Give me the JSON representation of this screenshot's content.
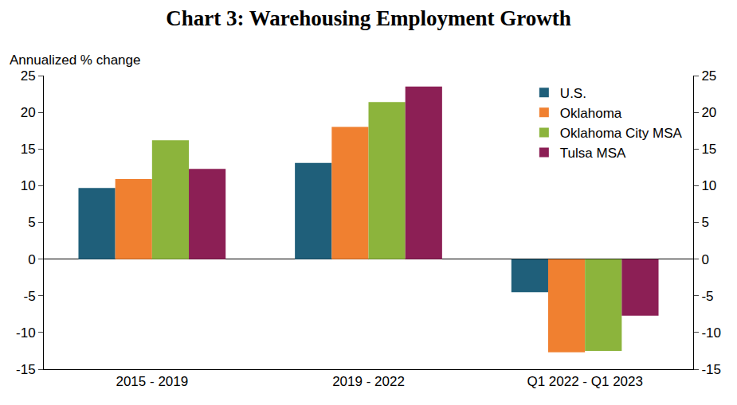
{
  "chart_data": {
    "type": "bar",
    "title": "Chart 3: Warehousing Employment Growth",
    "ylabel": "Annualized % change",
    "categories": [
      "2015 - 2019",
      "2019 - 2022",
      "Q1 2022 - Q1 2023"
    ],
    "series": [
      {
        "name": "U.S.",
        "color": "#1f5f7a",
        "values": [
          9.7,
          13.1,
          -4.5
        ]
      },
      {
        "name": "Oklahoma",
        "color": "#f08030",
        "values": [
          10.9,
          18.0,
          -12.7
        ]
      },
      {
        "name": "Oklahoma City MSA",
        "color": "#8cb43c",
        "values": [
          16.2,
          21.4,
          -12.5
        ]
      },
      {
        "name": "Tulsa MSA",
        "color": "#8c1f55",
        "values": [
          12.3,
          23.5,
          -7.7
        ]
      }
    ],
    "ylim": [
      -15,
      25
    ],
    "yticks": [
      -15,
      -10,
      -5,
      0,
      5,
      10,
      15,
      20,
      25
    ],
    "y2lim": [
      -15,
      25
    ],
    "y2ticks": [
      -15,
      -10,
      -5,
      0,
      5,
      10,
      15,
      20,
      25
    ],
    "grid": false,
    "legend": "upper right"
  }
}
